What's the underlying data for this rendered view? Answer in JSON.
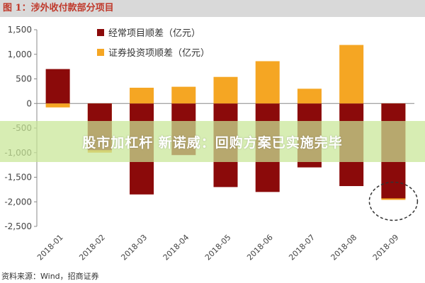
{
  "title": "图 1：涉外收付款部分项目",
  "overlay_text": "股市加杠杆 新诺威：回购方案已实施完毕",
  "source": "资料来源：Wind，招商证券",
  "colors": {
    "series1": "#8b0a0a",
    "series2": "#f5a623",
    "axis": "#888888",
    "highlight": "#333333"
  },
  "chart_data": {
    "type": "bar",
    "title": "",
    "xlabel": "",
    "ylabel": "",
    "ylim": [
      -2500,
      1500
    ],
    "yticks": [
      1500,
      1000,
      500,
      0,
      -500,
      -1000,
      -1500,
      -2000,
      -2500
    ],
    "ytick_labels": [
      "1,500",
      "1,000",
      "500",
      "0",
      "-500",
      "-1,000",
      "-1,500",
      "-2,000",
      "-2,500"
    ],
    "categories": [
      "2018-01",
      "2018-02",
      "2018-03",
      "2018-04",
      "2018-05",
      "2018-06",
      "2018-07",
      "2018-08",
      "2018-09"
    ],
    "series": [
      {
        "name": "经常项目顺差（亿元）",
        "values": [
          700,
          -950,
          -1850,
          -1050,
          -1700,
          -1800,
          -1300,
          -1680,
          -1930
        ]
      },
      {
        "name": "证券投资项顺差（亿元）",
        "values": [
          -80,
          -1000,
          320,
          340,
          540,
          860,
          300,
          1190,
          -1960
        ]
      }
    ],
    "legend_position": "top-center",
    "annotation": "dashed circle around 2018-09 bars"
  }
}
